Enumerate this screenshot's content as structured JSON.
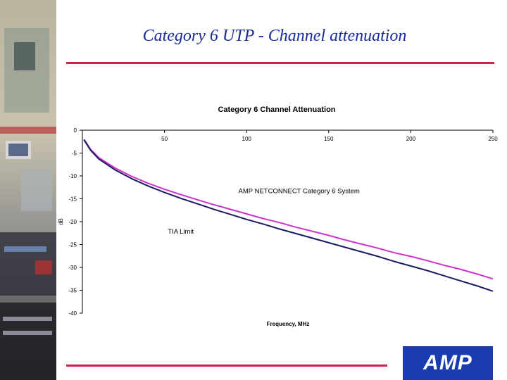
{
  "slide": {
    "title": "Category 6 UTP - Channel attenuation",
    "logo_text": "AMP"
  },
  "colors": {
    "title": "#1a2a9a",
    "rule": "#d0204a",
    "logo_bg": "#1a3ab0",
    "series_amp": "#cc33cc",
    "series_tia": "#1a1a60",
    "plot_bg": "#ffffff"
  },
  "chart_data": {
    "type": "line",
    "title": "Category 6 Channel Attenuation",
    "xlabel": "Frequency, MHz",
    "ylabel": "dB",
    "xlim": [
      0,
      250
    ],
    "ylim": [
      -40,
      0
    ],
    "x_ticks": [
      0,
      50,
      100,
      150,
      200,
      250
    ],
    "y_ticks": [
      0,
      -5,
      -10,
      -15,
      -20,
      -25,
      -30,
      -35,
      -40
    ],
    "grid": false,
    "annotations": [
      {
        "text": "AMP NETCONNECT Category 6 System",
        "x": 95,
        "y": -13.8
      },
      {
        "text": "TIA Limit",
        "x": 52,
        "y": -22.6
      }
    ],
    "series": [
      {
        "name": "AMP NETCONNECT Category 6 System",
        "x": [
          1,
          5,
          10,
          20,
          30,
          40,
          50,
          60,
          70,
          80,
          90,
          100,
          110,
          120,
          130,
          140,
          150,
          160,
          170,
          180,
          190,
          200,
          210,
          220,
          230,
          240,
          250
        ],
        "y": [
          -2.0,
          -4.2,
          -6.0,
          -8.3,
          -10.1,
          -11.6,
          -12.9,
          -14.1,
          -15.2,
          -16.3,
          -17.3,
          -18.3,
          -19.3,
          -20.2,
          -21.2,
          -22.1,
          -23.0,
          -24.0,
          -24.9,
          -25.8,
          -26.8,
          -27.6,
          -28.5,
          -29.5,
          -30.4,
          -31.4,
          -32.5
        ]
      },
      {
        "name": "TIA Limit",
        "x": [
          1,
          5,
          10,
          20,
          30,
          40,
          50,
          60,
          70,
          80,
          90,
          100,
          110,
          120,
          130,
          140,
          150,
          160,
          170,
          180,
          190,
          200,
          210,
          220,
          230,
          240,
          250
        ],
        "y": [
          -2.1,
          -4.4,
          -6.3,
          -8.7,
          -10.6,
          -12.2,
          -13.6,
          -14.9,
          -16.1,
          -17.3,
          -18.4,
          -19.5,
          -20.5,
          -21.6,
          -22.6,
          -23.6,
          -24.6,
          -25.6,
          -26.6,
          -27.6,
          -28.7,
          -29.7,
          -30.7,
          -31.8,
          -32.9,
          -34.0,
          -35.2
        ]
      }
    ]
  }
}
